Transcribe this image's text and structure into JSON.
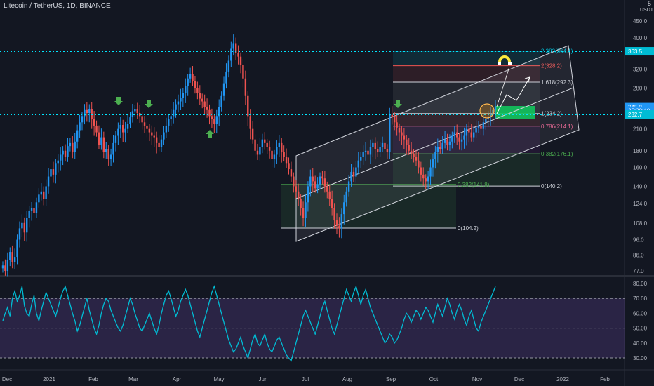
{
  "header": {
    "title": "Litecoin / TetherUS, 1D, BINANCE",
    "unit_top": "5",
    "unit": "USDT"
  },
  "colors": {
    "background": "#131722",
    "bull": "#2196f3",
    "bear": "#ef5350",
    "rsi_line": "#00bcd4",
    "rsi_band": "#7e57c2",
    "dotted_line": "#00e5ff",
    "arrow": "#4caf50",
    "fib_green": "#4caf50",
    "fib_red": "#f06292"
  },
  "chart_data": {
    "type": "candlestick",
    "log_scale": true,
    "price_ticks": [
      "450.0",
      "400.0",
      "360.0",
      "320.0",
      "280.0",
      "240.0",
      "210.0",
      "180.0",
      "160.0",
      "140.0",
      "124.0",
      "108.0",
      "96.0",
      "86.0",
      "77.0"
    ],
    "x_ticks": [
      "Dec",
      "2021",
      "Feb",
      "Mar",
      "Apr",
      "May",
      "Jun",
      "Jul",
      "Aug",
      "Sep",
      "Oct",
      "Nov",
      "Dec",
      "2022",
      "Feb"
    ],
    "price_badges": [
      {
        "label": "363.5",
        "value": 363.5,
        "color": "#00bcd4"
      },
      {
        "label": "245.0",
        "value": 245.0,
        "color": "#2196f3"
      },
      {
        "label": "35:29:40",
        "value": 239.0,
        "color": "#2196f3"
      },
      {
        "label": "232.7",
        "value": 232.7,
        "color": "#00bcd4"
      }
    ],
    "horizontal_lines": [
      363.5,
      232.7
    ],
    "fib_big": [
      {
        "label": "2.382(364.1)",
        "value": 364.1,
        "color": "#00bcd4"
      },
      {
        "label": "2(328.2)",
        "value": 328.2,
        "color": "#ef5350"
      },
      {
        "label": "1.618(292.3)",
        "value": 292.3,
        "color": "#d1d4dc"
      },
      {
        "label": "1(234.2)",
        "value": 234.2,
        "color": "#d1d4dc"
      },
      {
        "label": "0.786(214.1)",
        "value": 214.1,
        "color": "#f06292"
      },
      {
        "label": "0.382(176.1)",
        "value": 176.1,
        "color": "#4caf50"
      },
      {
        "label": "0(140.2)",
        "value": 140.2,
        "color": "#d1d4dc"
      }
    ],
    "fib_small": [
      {
        "label": "0.382(141.8)",
        "value": 141.8,
        "color": "#4caf50"
      },
      {
        "label": "0(104.2)",
        "value": 104.2,
        "color": "#d1d4dc"
      }
    ],
    "candles_close": [
      80,
      77,
      83,
      88,
      82,
      85,
      96,
      104,
      108,
      101,
      112,
      118,
      120,
      116,
      125,
      132,
      135,
      128,
      140,
      150,
      158,
      152,
      165,
      168,
      175,
      180,
      172,
      186,
      190,
      178,
      192,
      208,
      220,
      230,
      240,
      235,
      242,
      225,
      215,
      205,
      188,
      198,
      178,
      182,
      170,
      175,
      190,
      200,
      210,
      216,
      205,
      210,
      218,
      228,
      238,
      242,
      235,
      230,
      220,
      215,
      210,
      205,
      200,
      198,
      190,
      185,
      195,
      205,
      215,
      225,
      230,
      240,
      250,
      255,
      262,
      270,
      285,
      300,
      310,
      295,
      280,
      270,
      260,
      255,
      245,
      240,
      230,
      225,
      218,
      230,
      245,
      265,
      290,
      315,
      340,
      370,
      385,
      360,
      350,
      330,
      300,
      265,
      230,
      210,
      195,
      180,
      175,
      185,
      195,
      190,
      185,
      180,
      170,
      175,
      185,
      190,
      178,
      172,
      165,
      158,
      150,
      140,
      135,
      128,
      120,
      112,
      125,
      140,
      150,
      145,
      138,
      142,
      150,
      148,
      140,
      135,
      128,
      120,
      110,
      106,
      104,
      115,
      125,
      135,
      145,
      155,
      150,
      160,
      168,
      172,
      178,
      180,
      175,
      185,
      190,
      182,
      178,
      185,
      190,
      182,
      178,
      232,
      228,
      220,
      212,
      205,
      200,
      195,
      188,
      180,
      176,
      172,
      168,
      160,
      152,
      148,
      145,
      150,
      160,
      170,
      178,
      185,
      182,
      190,
      195,
      188,
      192,
      200,
      205,
      198,
      192,
      195,
      200,
      210,
      205,
      198,
      205,
      212,
      215,
      210,
      220,
      225,
      228,
      232,
      240,
      245
    ],
    "rsi_ticks": [
      "80.00",
      "70.00",
      "60.00",
      "50.00",
      "40.00",
      "30.00"
    ],
    "rsi_ylim": [
      25,
      85
    ],
    "rsi_band": [
      30,
      70
    ],
    "rsi_mid": 50,
    "rsi_values": [
      55,
      60,
      64,
      58,
      70,
      75,
      68,
      72,
      78,
      65,
      60,
      58,
      66,
      72,
      60,
      55,
      62,
      68,
      74,
      70,
      66,
      62,
      58,
      64,
      70,
      75,
      78,
      72,
      66,
      60,
      55,
      48,
      52,
      58,
      64,
      70,
      62,
      56,
      50,
      46,
      52,
      60,
      66,
      70,
      68,
      62,
      58,
      54,
      50,
      48,
      52,
      58,
      64,
      70,
      66,
      60,
      55,
      50,
      48,
      52,
      56,
      60,
      55,
      50,
      46,
      52,
      60,
      66,
      72,
      75,
      70,
      64,
      58,
      62,
      68,
      72,
      76,
      72,
      66,
      60,
      54,
      48,
      44,
      50,
      56,
      62,
      68,
      74,
      78,
      72,
      66,
      60,
      54,
      48,
      42,
      38,
      34,
      36,
      40,
      44,
      38,
      34,
      30,
      36,
      42,
      46,
      40,
      38,
      42,
      46,
      40,
      36,
      34,
      38,
      42,
      44,
      40,
      36,
      32,
      30,
      28,
      34,
      40,
      46,
      52,
      58,
      62,
      58,
      54,
      50,
      46,
      52,
      58,
      64,
      68,
      62,
      56,
      50,
      46,
      52,
      58,
      64,
      70,
      76,
      72,
      68,
      74,
      78,
      72,
      66,
      72,
      76,
      70,
      64,
      60,
      56,
      52,
      48,
      44,
      40,
      42,
      46,
      44,
      40,
      42,
      46,
      50,
      56,
      60,
      58,
      54,
      58,
      62,
      60,
      56,
      60,
      64,
      62,
      58,
      54,
      60,
      66,
      62,
      58,
      64,
      70,
      66,
      60,
      56,
      62,
      66,
      62,
      56,
      52,
      58,
      62,
      56,
      50,
      48,
      54,
      58,
      62,
      66,
      70,
      74,
      78
    ]
  }
}
